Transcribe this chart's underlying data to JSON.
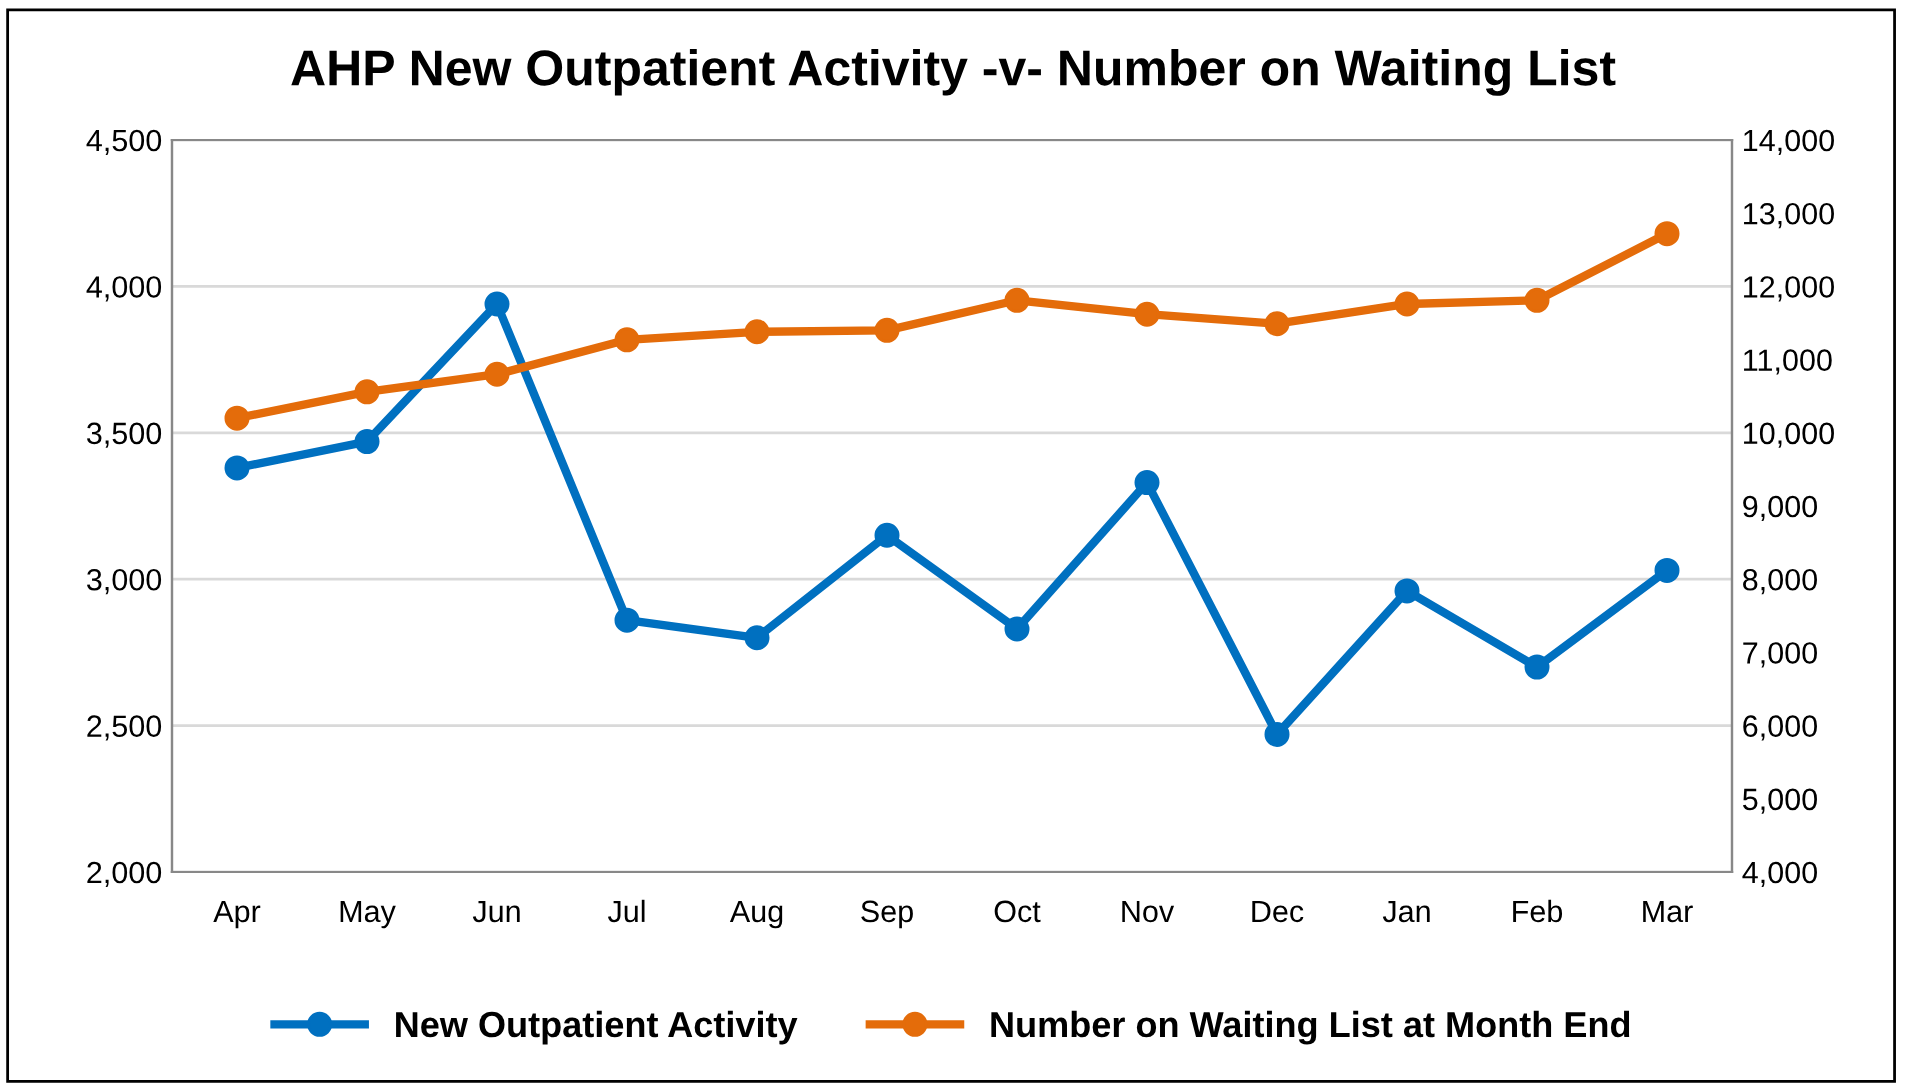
{
  "chart_data": {
    "type": "line",
    "title": "AHP New Outpatient Activity -v- Number on Waiting List",
    "categories": [
      "Apr",
      "May",
      "Jun",
      "Jul",
      "Aug",
      "Sep",
      "Oct",
      "Nov",
      "Dec",
      "Jan",
      "Feb",
      "Mar"
    ],
    "series": [
      {
        "name": "New Outpatient Activity",
        "color": "#0070c0",
        "values": [
          3380,
          3470,
          3940,
          2860,
          2800,
          3150,
          2830,
          3330,
          2470,
          2960,
          2700,
          3030
        ]
      },
      {
        "name": "Number on Waiting List at Month End",
        "color": "#e46c0a",
        "axis": "y2",
        "values": [
          10200,
          10560,
          10800,
          11270,
          11380,
          11400,
          11810,
          11620,
          11490,
          11760,
          11810,
          12720
        ]
      }
    ],
    "ylim": [
      2000,
      4500
    ],
    "yticks": [
      {
        "value": 2000,
        "label": "2,000"
      },
      {
        "value": 2500,
        "label": "2,500"
      },
      {
        "value": 3000,
        "label": "3,000"
      },
      {
        "value": 3500,
        "label": "3,500"
      },
      {
        "value": 4000,
        "label": "4,000"
      },
      {
        "value": 4500,
        "label": "4,500"
      }
    ],
    "y2lim": [
      4000,
      14000
    ],
    "y2ticks": [
      {
        "value": 4000,
        "label": "4,000"
      },
      {
        "value": 5000,
        "label": "5,000"
      },
      {
        "value": 6000,
        "label": "6,000"
      },
      {
        "value": 7000,
        "label": "7,000"
      },
      {
        "value": 8000,
        "label": "8,000"
      },
      {
        "value": 9000,
        "label": "9,000"
      },
      {
        "value": 10000,
        "label": "10,000"
      },
      {
        "value": 11000,
        "label": "11,000"
      },
      {
        "value": 12000,
        "label": "12,000"
      },
      {
        "value": 13000,
        "label": "13,000"
      },
      {
        "value": 14000,
        "label": "14,000"
      }
    ],
    "grid": "y",
    "legend": "bottom",
    "marker": "circle",
    "line_style": "solid"
  }
}
